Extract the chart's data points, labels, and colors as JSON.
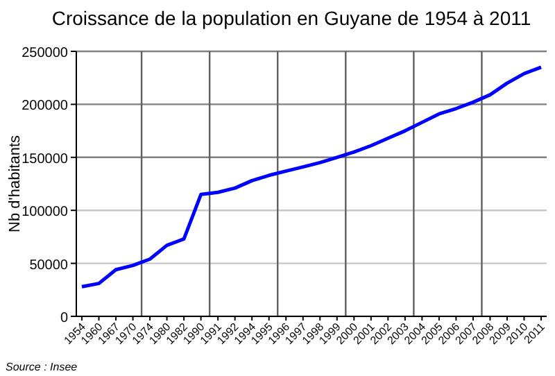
{
  "chart_data": {
    "type": "line",
    "title": "Croissance de la population en Guyane de 1954 à 2011",
    "ylabel": "Nb d'habitants",
    "categories": [
      "1954",
      "1960",
      "1967",
      "1970",
      "1974",
      "1980",
      "1982",
      "1990",
      "1991",
      "1992",
      "1994",
      "1995",
      "1996",
      "1997",
      "1998",
      "1999",
      "2000",
      "2001",
      "2002",
      "2003",
      "2004",
      "2005",
      "2006",
      "2007",
      "2008",
      "2009",
      "2010",
      "2011"
    ],
    "series": [
      {
        "color": "#0000ff",
        "values": [
          28000,
          31000,
          44000,
          48000,
          54000,
          67000,
          73000,
          115000,
          117000,
          121000,
          128000,
          133000,
          137000,
          141000,
          145000,
          150000,
          155000,
          161000,
          168000,
          175000,
          183000,
          191000,
          196000,
          202000,
          209000,
          220000,
          229000,
          235000
        ]
      }
    ],
    "ylim": [
      0,
      250000
    ],
    "yticks": [
      0,
      50000,
      100000,
      150000,
      200000,
      250000
    ],
    "grid": true,
    "marker": "none",
    "line_style": "solid",
    "annotations": [
      "Source : Insee"
    ]
  }
}
